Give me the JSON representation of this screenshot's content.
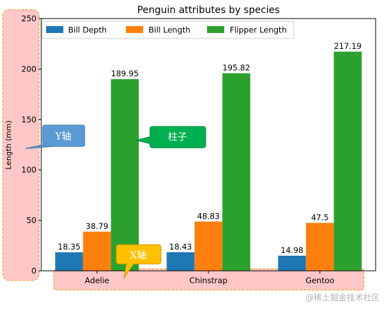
{
  "chart_data": {
    "type": "bar",
    "title": "Penguin attributes by species",
    "xlabel": "",
    "ylabel": "Length (mm)",
    "categories": [
      "Adelie",
      "Chinstrap",
      "Gentoo"
    ],
    "series": [
      {
        "name": "Bill Depth",
        "values": [
          18.35,
          18.43,
          14.98
        ],
        "labels": [
          "18.35",
          "18.43",
          "14.98"
        ],
        "color": "#1f77b4"
      },
      {
        "name": "Bill Length",
        "values": [
          38.79,
          48.83,
          47.5
        ],
        "labels": [
          "38.79",
          "48.83",
          "47.5"
        ],
        "color": "#ff7f0e"
      },
      {
        "name": "Flipper Length",
        "values": [
          189.95,
          195.82,
          217.19
        ],
        "labels": [
          "189.95",
          "195.82",
          "217.19"
        ],
        "color": "#2ca02c"
      }
    ],
    "ylim": [
      0,
      250
    ],
    "yticks": [
      0,
      50,
      100,
      150,
      200,
      250
    ],
    "legend": {
      "placement": "top-left",
      "ncol": 3
    },
    "grid": false
  },
  "annotations": {
    "y_axis_callout": {
      "label": "Y轴",
      "color": "#5b9bd5"
    },
    "bar_callout": {
      "label": "柱子",
      "color": "#00b050"
    },
    "x_axis_callout": {
      "label": "X轴",
      "color": "#ffc000"
    },
    "highlight_fill": "#ffc7c7",
    "highlight_stroke": "#e6a020"
  },
  "watermark": "@稀土掘金技术社区"
}
